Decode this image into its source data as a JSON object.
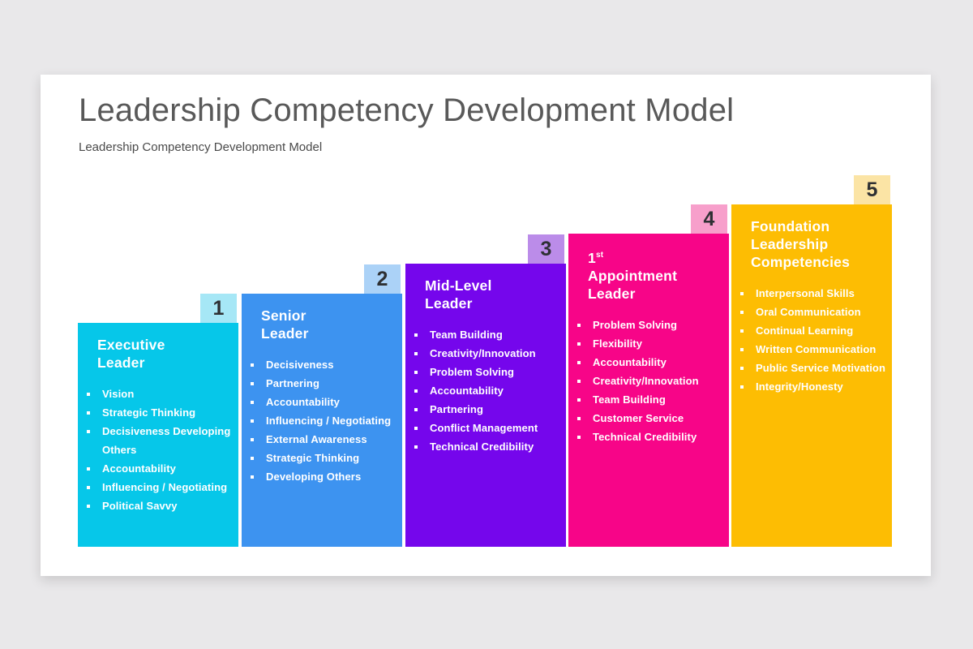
{
  "header": {
    "title": "Leadership Competency Development Model",
    "subtitle": "Leadership Competency Development Model"
  },
  "colors": {
    "page_background": "#E9E8EA",
    "card_background": "#FFFFFF",
    "title_text": "#595959",
    "subtitle_text": "#4A4A4A",
    "step_number_text": "#2E3033"
  },
  "steps": [
    {
      "number": "1",
      "color": "#06C7E9",
      "tab_color": "#A6E7F6",
      "title_lines": [
        {
          "text": "Executive"
        },
        {
          "text": "Leader"
        }
      ],
      "items": [
        "Vision",
        "Strategic Thinking",
        "Decisiveness Developing Others",
        "Accountability",
        "Influencing / Negotiating",
        "Political Savvy"
      ]
    },
    {
      "number": "2",
      "color": "#3D93F0",
      "tab_color": "#ABD2F7",
      "title_lines": [
        {
          "text": "Senior"
        },
        {
          "text": "Leader"
        }
      ],
      "items": [
        "Decisiveness",
        "Partnering",
        "Accountability",
        "Influencing / Negotiating",
        "External Awareness",
        "Strategic Thinking",
        "Developing Others"
      ]
    },
    {
      "number": "3",
      "color": "#7506EC",
      "tab_color": "#BB8CE9",
      "title_lines": [
        {
          "text": "Mid-Level"
        },
        {
          "text": "Leader"
        }
      ],
      "items": [
        "Team Building",
        "Creativity/Innovation",
        "Problem Solving",
        "Accountability",
        "Partnering",
        "Conflict Management",
        "Technical Credibility"
      ]
    },
    {
      "number": "4",
      "color": "#F70588",
      "tab_color": "#F79FCB",
      "title_lines": [
        {
          "text": "1",
          "sup": "st"
        },
        {
          "text": "Appointment Leader"
        }
      ],
      "items": [
        "Problem Solving",
        "Flexibility",
        "Accountability",
        "Creativity/Innovation",
        "Team Building",
        "Customer Service",
        "Technical Credibility"
      ]
    },
    {
      "number": "5",
      "color": "#FDBD03",
      "tab_color": "#FBE4A5",
      "title_lines": [
        {
          "text": "Foundation Leadership"
        },
        {
          "text": "Competencies"
        }
      ],
      "items": [
        "Interpersonal Skills",
        "Oral Communication",
        "Continual Learning",
        "Written Communication",
        "Public Service Motivation",
        "Integrity/Honesty"
      ]
    }
  ]
}
